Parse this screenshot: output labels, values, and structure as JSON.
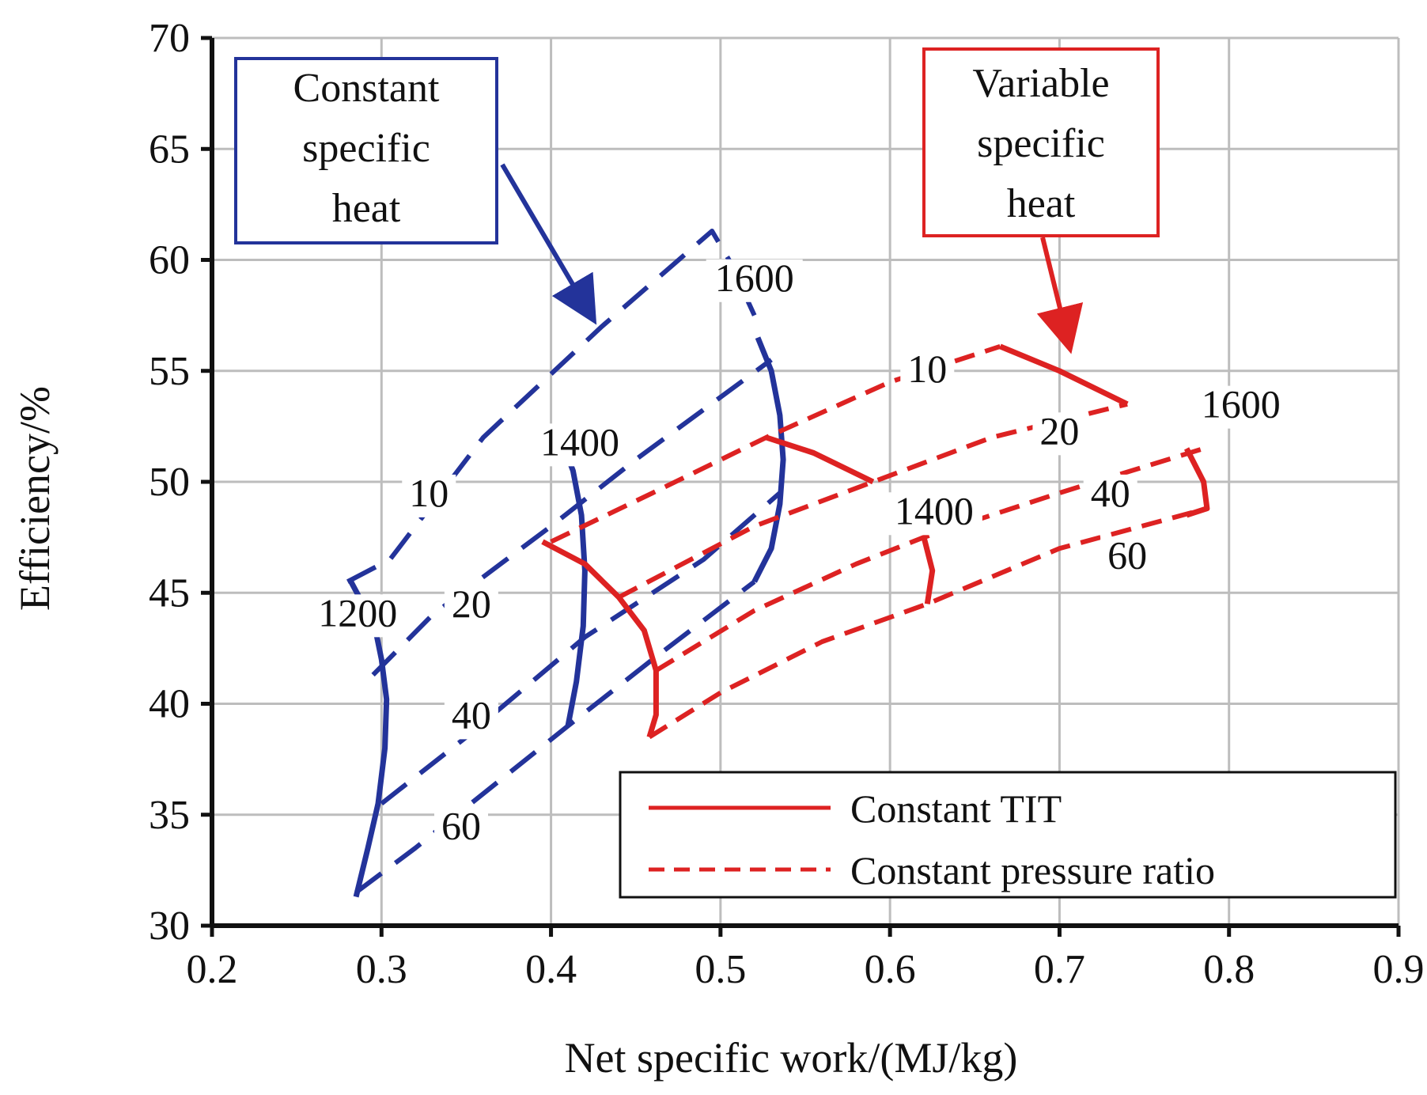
{
  "chart_data": {
    "type": "line",
    "xlabel": "Net specific work/(MJ/kg)",
    "ylabel": "Efficiency/%",
    "xlim": [
      0.2,
      0.9
    ],
    "ylim": [
      30,
      70
    ],
    "x_ticks": [
      "0.2",
      "0.3",
      "0.4",
      "0.5",
      "0.6",
      "0.7",
      "0.8",
      "0.9"
    ],
    "y_ticks": [
      "30",
      "35",
      "40",
      "45",
      "50",
      "55",
      "60",
      "65",
      "70"
    ],
    "grid": true,
    "annotations": {
      "constant": [
        "Constant",
        "specific",
        "heat"
      ],
      "variable": [
        "Variable",
        "specific",
        "heat"
      ]
    },
    "legend": {
      "position": "bottom-right",
      "entries": [
        {
          "label": "Constant TIT",
          "style": "solid",
          "color": "#dd2222"
        },
        {
          "label": "Constant pressure ratio",
          "style": "dashed",
          "color": "#dd2222"
        }
      ]
    },
    "series": [
      {
        "name": "Constant specific heat, TIT 1200",
        "group": "constant",
        "style": "solid",
        "color": "#23339a",
        "label": "1200",
        "points": [
          [
            0.285,
            31.3
          ],
          [
            0.292,
            33.5
          ],
          [
            0.298,
            35.5
          ],
          [
            0.302,
            38
          ],
          [
            0.303,
            40.2
          ],
          [
            0.3,
            42
          ],
          [
            0.296,
            43.5
          ],
          [
            0.282,
            45.5
          ]
        ]
      },
      {
        "name": "Constant specific heat, TIT 1400",
        "group": "constant",
        "style": "solid",
        "color": "#23339a",
        "label": "1400",
        "points": [
          [
            0.41,
            39
          ],
          [
            0.415,
            41
          ],
          [
            0.419,
            43.5
          ],
          [
            0.42,
            46
          ],
          [
            0.418,
            48.5
          ],
          [
            0.413,
            50.5
          ],
          [
            0.408,
            51.5
          ]
        ]
      },
      {
        "name": "Constant specific heat, TIT 1600",
        "group": "constant",
        "style": "solid",
        "color": "#23339a",
        "label": "1600",
        "points": [
          [
            0.52,
            45.5
          ],
          [
            0.53,
            47
          ],
          [
            0.535,
            49
          ],
          [
            0.537,
            51
          ],
          [
            0.535,
            53
          ],
          [
            0.53,
            55
          ],
          [
            0.522,
            56.5
          ]
        ]
      },
      {
        "name": "Constant specific heat, pressure ratio 10",
        "group": "constant",
        "style": "dashed",
        "color": "#23339a",
        "label": "10",
        "points": [
          [
            0.28,
            45.5
          ],
          [
            0.305,
            46.5
          ],
          [
            0.36,
            52
          ],
          [
            0.43,
            57
          ],
          [
            0.495,
            61.3
          ],
          [
            0.505,
            60
          ],
          [
            0.52,
            57.5
          ]
        ]
      },
      {
        "name": "Constant specific heat, pressure ratio 20",
        "group": "constant",
        "style": "dashed",
        "color": "#23339a",
        "label": "20",
        "points": [
          [
            0.295,
            41.3
          ],
          [
            0.33,
            44
          ],
          [
            0.4,
            48
          ],
          [
            0.45,
            51
          ],
          [
            0.53,
            55.5
          ]
        ]
      },
      {
        "name": "Constant specific heat, pressure ratio 40",
        "group": "constant",
        "style": "dashed",
        "color": "#23339a",
        "label": "40",
        "points": [
          [
            0.3,
            35.5
          ],
          [
            0.35,
            38.5
          ],
          [
            0.42,
            43
          ],
          [
            0.49,
            46.5
          ],
          [
            0.535,
            49.5
          ]
        ]
      },
      {
        "name": "Constant specific heat, pressure ratio 60",
        "group": "constant",
        "style": "dashed",
        "color": "#23339a",
        "label": "60",
        "points": [
          [
            0.285,
            31.5
          ],
          [
            0.32,
            33.5
          ],
          [
            0.41,
            39
          ],
          [
            0.46,
            42
          ],
          [
            0.52,
            45.5
          ]
        ]
      },
      {
        "name": "Variable specific heat, TIT 1400 (low)",
        "group": "variable",
        "style": "solid",
        "color": "#dd2222",
        "points": [
          [
            0.395,
            47.3
          ],
          [
            0.42,
            46.3
          ],
          [
            0.44,
            44.8
          ],
          [
            0.455,
            43.3
          ],
          [
            0.462,
            41.5
          ],
          [
            0.462,
            39.5
          ],
          [
            0.458,
            38.5
          ]
        ]
      },
      {
        "name": "Variable specific heat, TIT 1400",
        "group": "variable",
        "style": "solid",
        "color": "#dd2222",
        "label": "1400",
        "points": [
          [
            0.62,
            47.5
          ],
          [
            0.625,
            46
          ],
          [
            0.622,
            44.5
          ]
        ]
      },
      {
        "name": "Variable specific heat, TIT 1600 (mid)",
        "group": "variable",
        "style": "solid",
        "color": "#dd2222",
        "points": [
          [
            0.527,
            52
          ],
          [
            0.555,
            51.3
          ],
          [
            0.59,
            50
          ]
        ]
      },
      {
        "name": "Variable specific heat, TIT 1600",
        "group": "variable",
        "style": "solid",
        "color": "#dd2222",
        "label": "1600",
        "points": [
          [
            0.665,
            56.1
          ],
          [
            0.7,
            55
          ],
          [
            0.74,
            53.5
          ]
        ]
      },
      {
        "name": "Variable specific heat, TIT 1600 (right)",
        "group": "variable",
        "style": "solid",
        "color": "#dd2222",
        "points": [
          [
            0.775,
            51.5
          ],
          [
            0.785,
            50
          ],
          [
            0.787,
            48.8
          ],
          [
            0.775,
            48.5
          ]
        ]
      },
      {
        "name": "Variable specific heat, pressure ratio 10",
        "group": "variable",
        "style": "dashed",
        "color": "#dd2222",
        "label": "10",
        "points": [
          [
            0.4,
            47.3
          ],
          [
            0.46,
            49.5
          ],
          [
            0.527,
            52
          ],
          [
            0.6,
            54.5
          ],
          [
            0.665,
            56.1
          ]
        ]
      },
      {
        "name": "Variable specific heat, pressure ratio 20",
        "group": "variable",
        "style": "dashed",
        "color": "#dd2222",
        "label": "20",
        "points": [
          [
            0.44,
            44.8
          ],
          [
            0.52,
            48
          ],
          [
            0.59,
            50
          ],
          [
            0.66,
            52
          ],
          [
            0.74,
            53.5
          ]
        ]
      },
      {
        "name": "Variable specific heat, pressure ratio 40",
        "group": "variable",
        "style": "dashed",
        "color": "#dd2222",
        "label": "40",
        "points": [
          [
            0.462,
            41.5
          ],
          [
            0.52,
            44.2
          ],
          [
            0.58,
            46.3
          ],
          [
            0.62,
            47.5
          ],
          [
            0.7,
            49.5
          ],
          [
            0.785,
            51.5
          ]
        ]
      },
      {
        "name": "Variable specific heat, pressure ratio 60",
        "group": "variable",
        "style": "dashed",
        "color": "#dd2222",
        "label": "60",
        "points": [
          [
            0.458,
            38.5
          ],
          [
            0.5,
            40.5
          ],
          [
            0.56,
            42.8
          ],
          [
            0.622,
            44.5
          ],
          [
            0.7,
            47
          ],
          [
            0.787,
            48.8
          ]
        ]
      }
    ],
    "curve_labels": [
      {
        "text": "10",
        "x": 0.328,
        "y": 48.9,
        "group": "constant"
      },
      {
        "text": "20",
        "x": 0.353,
        "y": 43.9,
        "group": "constant"
      },
      {
        "text": "40",
        "x": 0.353,
        "y": 38.9,
        "group": "constant"
      },
      {
        "text": "60",
        "x": 0.347,
        "y": 33.9,
        "group": "constant"
      },
      {
        "text": "1200",
        "x": 0.286,
        "y": 43.5,
        "group": "constant"
      },
      {
        "text": "1400",
        "x": 0.417,
        "y": 51.2,
        "group": "constant"
      },
      {
        "text": "1600",
        "x": 0.52,
        "y": 58.6,
        "group": "constant"
      },
      {
        "text": "10",
        "x": 0.622,
        "y": 54.5,
        "group": "variable"
      },
      {
        "text": "20",
        "x": 0.7,
        "y": 51.7,
        "group": "variable"
      },
      {
        "text": "40",
        "x": 0.73,
        "y": 48.9,
        "group": "variable"
      },
      {
        "text": "60",
        "x": 0.74,
        "y": 46.1,
        "group": "variable"
      },
      {
        "text": "1400",
        "x": 0.626,
        "y": 48.1,
        "group": "variable"
      },
      {
        "text": "1600",
        "x": 0.807,
        "y": 52.9,
        "group": "variable"
      }
    ]
  }
}
